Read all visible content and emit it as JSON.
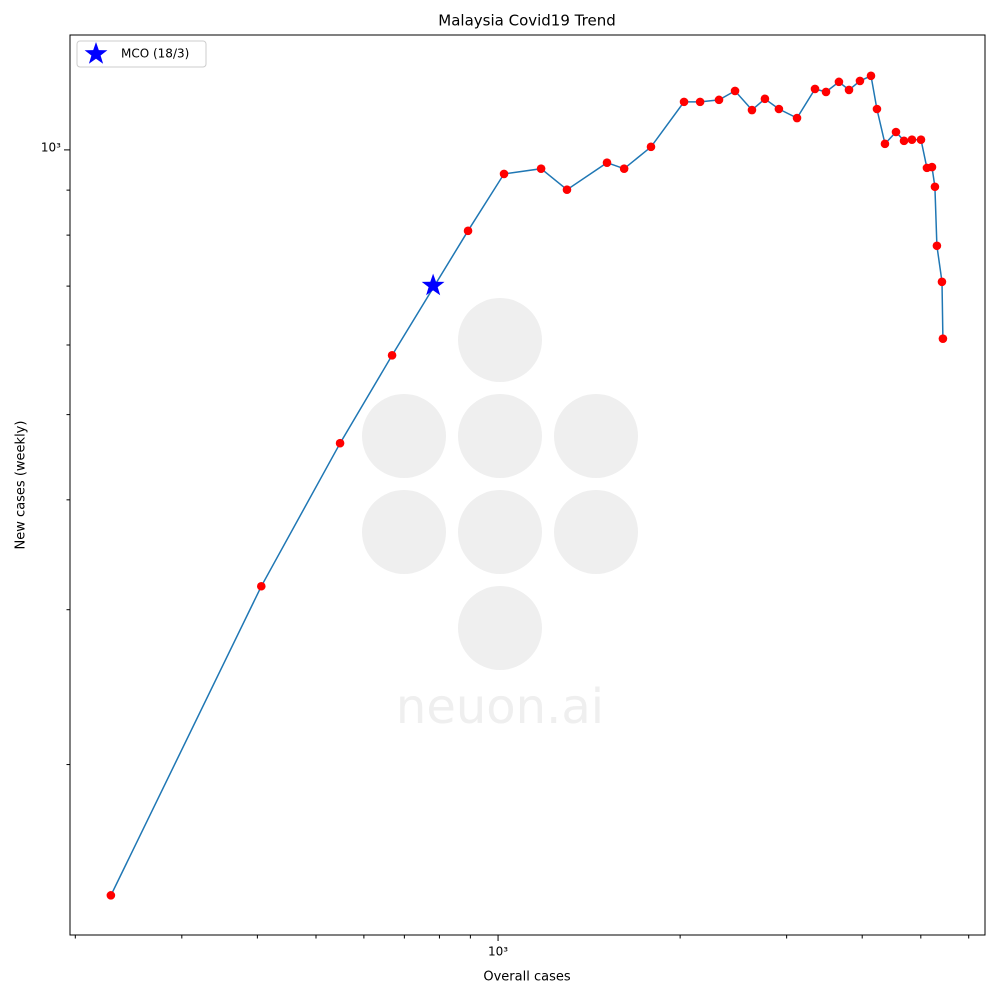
{
  "chart_data": {
    "type": "line",
    "title": "Malaysia Covid19 Trend",
    "xlabel": "Overall cases",
    "ylabel": "New cases (weekly)",
    "xscale": "log",
    "yscale": "log",
    "xlim": [
      196,
      6384
    ],
    "ylim": [
      128,
      1351
    ],
    "xticks": [
      {
        "value": 1000,
        "label": "10³"
      }
    ],
    "yticks": [
      {
        "value": 1000,
        "label": "10³"
      }
    ],
    "xminorticks": [
      200,
      300,
      400,
      500,
      600,
      700,
      800,
      900,
      2000,
      3000,
      4000,
      5000,
      6000
    ],
    "yminorticks": [
      200,
      300,
      400,
      500,
      600,
      700,
      800,
      900
    ],
    "legend": "upper left",
    "watermark": "neuon.ai",
    "series": [
      {
        "color": "#1f77b4",
        "marker_color": "#ff0000",
        "x": [
          229,
          406,
          548,
          668,
          892,
          1023,
          1178,
          1300,
          1514,
          1616,
          1790,
          2030,
          2158,
          2319,
          2465,
          2629,
          2762,
          2913,
          3121,
          3342,
          3485,
          3661,
          3804,
          3966,
          4136,
          4231,
          4362,
          4549,
          4690,
          4834,
          5003,
          5118,
          5217,
          5276,
          5316,
          5419,
          5439
        ],
        "values": [
          142,
          319,
          464,
          584,
          809,
          939,
          952,
          901,
          967,
          952,
          1008,
          1134,
          1134,
          1140,
          1167,
          1110,
          1143,
          1113,
          1087,
          1173,
          1164,
          1195,
          1170,
          1198,
          1214,
          1113,
          1016,
          1048,
          1024,
          1027,
          1027,
          954,
          956,
          908,
          778,
          708,
          610
        ]
      },
      {
        "name": "MCO (18/3)",
        "color": "#0000ff",
        "marker": "star",
        "x": [
          781
        ],
        "values": [
          701
        ]
      }
    ]
  }
}
